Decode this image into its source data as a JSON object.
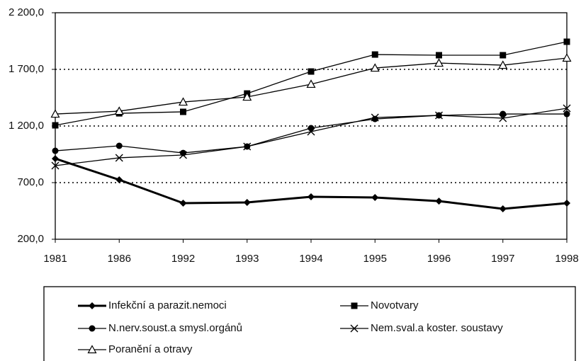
{
  "chart_data": {
    "type": "line",
    "categories": [
      "1981",
      "1986",
      "1992",
      "1993",
      "1994",
      "1995",
      "1996",
      "1997",
      "1998"
    ],
    "series": [
      {
        "name": "Infekční a parazit.nemoci",
        "color": "#000000",
        "marker": "diamond",
        "width": 3,
        "values": [
          912,
          725,
          519,
          525,
          575,
          569,
          537,
          469,
          519
        ]
      },
      {
        "name": "Novotvary",
        "color": "#000000",
        "marker": "square",
        "width": 1.3,
        "values": [
          1206,
          1312,
          1325,
          1487,
          1681,
          1831,
          1825,
          1825,
          1944
        ]
      },
      {
        "name": "N.nerv.soust.a smysl.orgánů",
        "color": "#000000",
        "marker": "circle",
        "width": 1.3,
        "values": [
          981,
          1025,
          962,
          1019,
          1181,
          1262,
          1294,
          1306,
          1306
        ]
      },
      {
        "name": "Nem.sval.a koster. soustavy",
        "color": "#000000",
        "marker": "cross",
        "width": 1.3,
        "values": [
          850,
          919,
          944,
          1019,
          1150,
          1275,
          1294,
          1269,
          1356
        ]
      },
      {
        "name": "Poranění a otravy",
        "color": "#000000",
        "marker": "triangle",
        "width": 1.3,
        "values": [
          1306,
          1331,
          1412,
          1456,
          1569,
          1712,
          1756,
          1737,
          1800
        ]
      }
    ],
    "ylim": [
      200,
      2200
    ],
    "yticks": [
      {
        "value": 200,
        "label": "200,0"
      },
      {
        "value": 700,
        "label": "700,0"
      },
      {
        "value": 1200,
        "label": "1 200,0"
      },
      {
        "value": 1700,
        "label": "1 700,0"
      },
      {
        "value": 2200,
        "label": "2 200,0"
      }
    ],
    "grid": true,
    "legend": "bottom"
  }
}
